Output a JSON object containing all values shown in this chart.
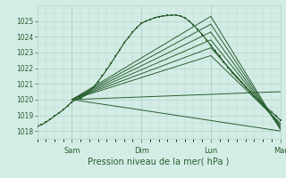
{
  "bg_color": "#d4ece6",
  "grid_color": "#b8d4cc",
  "line_color": "#2a6030",
  "xlabel": "Pression niveau de la mer( hPa )",
  "ylim": [
    1017.5,
    1026.0
  ],
  "yticks": [
    1018,
    1019,
    1020,
    1021,
    1022,
    1023,
    1024,
    1025
  ],
  "figsize": [
    3.2,
    2.0
  ],
  "dpi": 100,
  "xlim": [
    0,
    168
  ],
  "day_positions": [
    24,
    72,
    120,
    168
  ],
  "day_labels": [
    "Sam",
    "Dim",
    "Lun",
    "Mar"
  ],
  "main_x": [
    0,
    3,
    6,
    9,
    12,
    15,
    18,
    21,
    24,
    27,
    30,
    33,
    36,
    39,
    42,
    45,
    48,
    51,
    54,
    57,
    60,
    63,
    66,
    69,
    72,
    75,
    78,
    81,
    84,
    87,
    90,
    93,
    96,
    99,
    102,
    105,
    108,
    111,
    114,
    117,
    120,
    123,
    126,
    129,
    132,
    135,
    138,
    141,
    144,
    147,
    150,
    153,
    156,
    159,
    162,
    165,
    168
  ],
  "main_y": [
    1018.3,
    1018.4,
    1018.55,
    1018.75,
    1018.95,
    1019.15,
    1019.35,
    1019.6,
    1019.85,
    1020.0,
    1020.1,
    1020.25,
    1020.5,
    1020.8,
    1021.15,
    1021.5,
    1021.9,
    1022.3,
    1022.75,
    1023.15,
    1023.6,
    1023.95,
    1024.3,
    1024.6,
    1024.85,
    1025.0,
    1025.1,
    1025.2,
    1025.28,
    1025.32,
    1025.35,
    1025.38,
    1025.38,
    1025.32,
    1025.2,
    1025.0,
    1024.75,
    1024.45,
    1024.15,
    1023.8,
    1023.45,
    1023.1,
    1022.75,
    1022.4,
    1022.05,
    1021.7,
    1021.4,
    1021.1,
    1020.8,
    1020.5,
    1020.2,
    1019.95,
    1019.7,
    1019.45,
    1019.2,
    1018.95,
    1018.7
  ],
  "fan_lines": [
    {
      "x": [
        24,
        168
      ],
      "y": [
        1020.0,
        1018.0
      ]
    },
    {
      "x": [
        24,
        120,
        168
      ],
      "y": [
        1020.0,
        1025.3,
        1018.1
      ]
    },
    {
      "x": [
        24,
        120,
        168
      ],
      "y": [
        1020.0,
        1024.8,
        1018.15
      ]
    },
    {
      "x": [
        24,
        120,
        168
      ],
      "y": [
        1020.0,
        1024.3,
        1018.2
      ]
    },
    {
      "x": [
        24,
        120,
        168
      ],
      "y": [
        1020.0,
        1023.8,
        1018.3
      ]
    },
    {
      "x": [
        24,
        120,
        168
      ],
      "y": [
        1020.0,
        1023.3,
        1018.4
      ]
    },
    {
      "x": [
        24,
        120,
        168
      ],
      "y": [
        1020.0,
        1022.8,
        1018.5
      ]
    },
    {
      "x": [
        24,
        168
      ],
      "y": [
        1020.0,
        1020.5
      ]
    }
  ]
}
